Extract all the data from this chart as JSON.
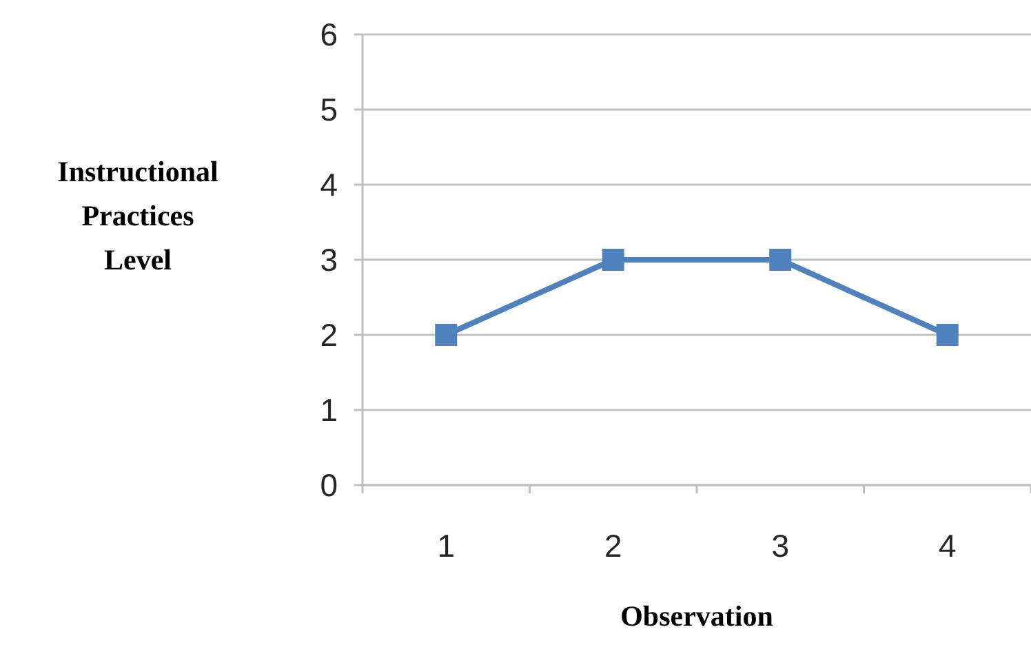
{
  "chart_data": {
    "type": "line",
    "xlabel": "Observation",
    "ylabel": "Instructional Practices Level",
    "categories": [
      "1",
      "2",
      "3",
      "4"
    ],
    "series": [
      {
        "color": "#4f81bd",
        "values": [
          2,
          3,
          3,
          2
        ]
      }
    ],
    "ylim": [
      0,
      6
    ],
    "yticks": [
      0,
      1,
      2,
      3,
      4,
      5,
      6
    ],
    "grid": "y",
    "marker": "square",
    "line_style": "solid"
  }
}
